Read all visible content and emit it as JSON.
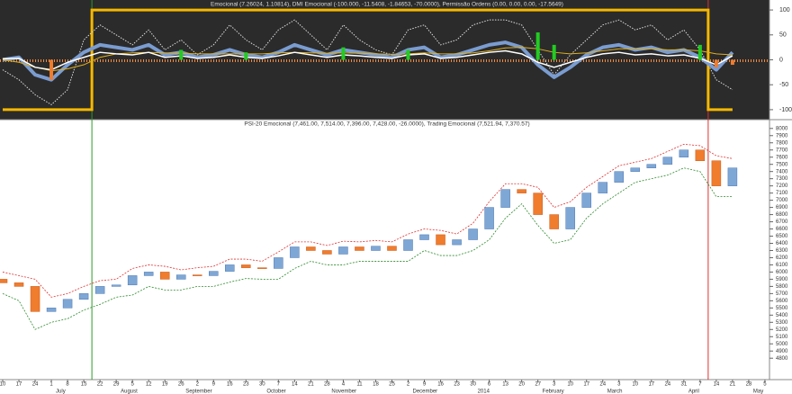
{
  "chart_data": [
    {
      "type": "line",
      "title": "Emocional (7.26024, 1.10814), DMI Emocional (-100.000, -11.5408, -1.84653, -70.0000), Permissão Ordens (0.00, 0.00, 0.00, -17.5649)",
      "ylim": [
        -120,
        120
      ],
      "yticks": [
        -100,
        -50,
        0,
        50,
        100
      ],
      "series": [
        {
          "color": "#f5b800",
          "style": "step",
          "values": [
            -100,
            -100,
            -100,
            -100,
            -100,
            -100,
            100,
            100,
            100,
            100,
            100,
            100,
            100,
            100,
            100,
            100,
            100,
            100,
            100,
            100,
            100,
            100,
            100,
            100,
            100,
            100,
            100,
            100,
            100,
            100,
            100,
            100,
            100,
            100,
            100,
            100,
            100,
            100,
            100,
            100,
            100,
            100,
            100,
            100,
            -100,
            -100,
            null,
            null
          ]
        },
        {
          "color": "#dddddd",
          "style": "dotted",
          "values": [
            -20,
            -40,
            -70,
            -90,
            -60,
            40,
            70,
            50,
            30,
            60,
            20,
            40,
            10,
            30,
            70,
            40,
            20,
            60,
            80,
            50,
            20,
            70,
            40,
            20,
            10,
            60,
            70,
            30,
            40,
            70,
            80,
            80,
            70,
            20,
            -30,
            10,
            40,
            70,
            80,
            60,
            70,
            40,
            60,
            20,
            -40,
            -60,
            null,
            null
          ]
        },
        {
          "color": "#7a9cd0",
          "style": "thick",
          "values": [
            0,
            5,
            -30,
            -40,
            -10,
            15,
            30,
            25,
            20,
            30,
            10,
            15,
            5,
            10,
            20,
            10,
            5,
            15,
            30,
            20,
            10,
            20,
            15,
            10,
            5,
            20,
            25,
            5,
            10,
            20,
            30,
            35,
            25,
            -10,
            -35,
            -15,
            10,
            25,
            30,
            20,
            25,
            15,
            20,
            5,
            -20,
            15,
            null,
            null
          ]
        },
        {
          "color": "#e0b020",
          "style": "thin",
          "values": [
            0,
            -5,
            -15,
            -22,
            -18,
            -10,
            5,
            12,
            14,
            15,
            14,
            13,
            12,
            12,
            12,
            12,
            12,
            14,
            15,
            14,
            13,
            14,
            13,
            12,
            11,
            12,
            14,
            12,
            12,
            14,
            18,
            24,
            25,
            22,
            15,
            12,
            14,
            18,
            22,
            22,
            22,
            20,
            20,
            18,
            12,
            10,
            null,
            null
          ]
        },
        {
          "color": "#ffffff",
          "style": "normal",
          "values": [
            2,
            3,
            -15,
            -20,
            -5,
            5,
            15,
            12,
            10,
            15,
            5,
            8,
            3,
            5,
            10,
            5,
            3,
            8,
            15,
            10,
            5,
            10,
            8,
            5,
            3,
            10,
            12,
            3,
            5,
            10,
            15,
            18,
            12,
            -5,
            -15,
            -5,
            5,
            12,
            15,
            10,
            12,
            8,
            10,
            3,
            -10,
            8,
            null,
            null
          ]
        },
        {
          "color": "#22cc22",
          "negative_color": "#f07c2e",
          "style": "bar",
          "values": [
            0,
            0,
            0,
            -40,
            0,
            0,
            0,
            0,
            0,
            0,
            0,
            20,
            0,
            0,
            0,
            15,
            0,
            0,
            0,
            0,
            0,
            25,
            0,
            0,
            0,
            20,
            0,
            0,
            0,
            0,
            0,
            0,
            0,
            55,
            30,
            0,
            0,
            0,
            0,
            0,
            0,
            0,
            0,
            30,
            -15,
            -10,
            null,
            null
          ]
        }
      ]
    },
    {
      "type": "candlestick",
      "title": "PSI-20 Emocional (7,461.00, 7,514.00, 7,396.00, 7,428.00, -26.0000), Trading Emocional (7,521.94, 7,370.57)",
      "ylim": [
        4740,
        8060
      ],
      "yticks": [
        4800,
        4900,
        5000,
        5100,
        5200,
        5300,
        5400,
        5500,
        5600,
        5700,
        5800,
        5900,
        6000,
        6100,
        6200,
        6300,
        6400,
        6500,
        6600,
        6700,
        6800,
        6900,
        7000,
        7100,
        7200,
        7300,
        7400,
        7500,
        7600,
        7700,
        7800,
        7900,
        8000
      ],
      "categories": [
        "10",
        "17",
        "24",
        "1",
        "8",
        "15",
        "22",
        "29",
        "5",
        "12",
        "19",
        "26",
        "2",
        "9",
        "16",
        "23",
        "30",
        "7",
        "14",
        "21",
        "28",
        "4",
        "11",
        "18",
        "25",
        "2",
        "9",
        "16",
        "23",
        "30",
        "6",
        "13",
        "20",
        "27",
        "3",
        "10",
        "17",
        "24",
        "3",
        "10",
        "17",
        "24",
        "31",
        "7",
        "14",
        "21",
        "28",
        "5"
      ],
      "months": [
        null,
        null,
        null,
        "July",
        null,
        null,
        null,
        "August",
        null,
        null,
        null,
        "September",
        null,
        null,
        null,
        null,
        "October",
        null,
        null,
        null,
        "November",
        null,
        null,
        null,
        null,
        "December",
        null,
        null,
        null,
        "2014",
        null,
        null,
        null,
        "February",
        null,
        null,
        null,
        "March",
        null,
        null,
        null,
        null,
        "April",
        null,
        null,
        null,
        "May",
        null
      ],
      "up_color": "#7fa7d6",
      "down_color": "#f07c2e",
      "open": [
        5900,
        5850,
        5800,
        5450,
        5500,
        5620,
        5700,
        5800,
        5820,
        5950,
        6000,
        5900,
        5960,
        5950,
        6010,
        6100,
        6060,
        6050,
        6200,
        6350,
        6300,
        6250,
        6350,
        6300,
        6360,
        6300,
        6450,
        6520,
        6380,
        6450,
        6600,
        6900,
        7150,
        7100,
        6800,
        6600,
        6900,
        7100,
        7250,
        7400,
        7450,
        7500,
        7600,
        7700,
        7550,
        7200,
        null,
        null
      ],
      "close": [
        5850,
        5800,
        5450,
        5500,
        5620,
        5700,
        5800,
        5820,
        5950,
        6000,
        5900,
        5960,
        5950,
        6010,
        6100,
        6060,
        6050,
        6200,
        6350,
        6300,
        6250,
        6350,
        6300,
        6360,
        6300,
        6450,
        6520,
        6380,
        6450,
        6600,
        6900,
        7150,
        7100,
        6800,
        6600,
        6900,
        7100,
        7250,
        7400,
        7450,
        7500,
        7600,
        7700,
        7550,
        7200,
        7450,
        null,
        null
      ],
      "bands": [
        {
          "color": "#e03030",
          "values": [
            6000,
            5950,
            5900,
            5650,
            5700,
            5800,
            5880,
            5900,
            6050,
            6100,
            6080,
            6030,
            6060,
            6080,
            6180,
            6180,
            6150,
            6280,
            6420,
            6420,
            6370,
            6430,
            6420,
            6440,
            6420,
            6530,
            6600,
            6580,
            6530,
            6680,
            6980,
            7230,
            7230,
            7180,
            6900,
            6980,
            7180,
            7330,
            7480,
            7530,
            7580,
            7680,
            7780,
            7760,
            7620,
            7580,
            null,
            null
          ]
        },
        {
          "color": "#2a8a2a",
          "values": [
            5700,
            5600,
            5200,
            5300,
            5350,
            5470,
            5550,
            5650,
            5680,
            5800,
            5750,
            5750,
            5800,
            5800,
            5860,
            5910,
            5900,
            5900,
            6050,
            6150,
            6100,
            6100,
            6150,
            6150,
            6150,
            6150,
            6300,
            6230,
            6230,
            6300,
            6450,
            6750,
            6950,
            6650,
            6400,
            6450,
            6750,
            6950,
            7100,
            7250,
            7300,
            7350,
            7450,
            7400,
            7050,
            7050,
            null,
            null
          ]
        }
      ]
    }
  ]
}
